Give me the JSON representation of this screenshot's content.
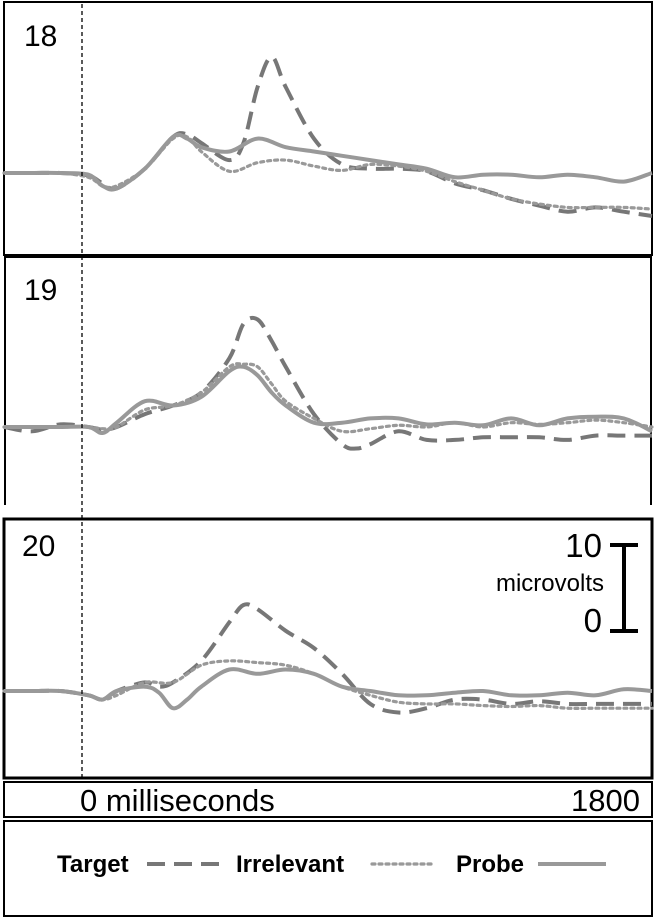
{
  "chart_data": {
    "type": "line",
    "x_unit": "milliseconds",
    "xlim": [
      -300,
      2000
    ],
    "x_ticks": [
      {
        "value": 0,
        "label": "0 milliseconds"
      },
      {
        "value": 1800,
        "label": "1800"
      }
    ],
    "scale_bar": {
      "top_label": "10",
      "bottom_label": "0",
      "unit_label": "microvolts",
      "microvolts": 10
    },
    "legend": {
      "placement": "bottom",
      "entries": [
        {
          "label": "Target",
          "style": "dashed"
        },
        {
          "label": "Irrelevant",
          "style": "dotted"
        },
        {
          "label": "Probe",
          "style": "solid"
        }
      ]
    },
    "colors": {
      "target": "#777777",
      "irrelevant": "#999999",
      "probe": "#999999"
    },
    "panels": [
      {
        "label": "18",
        "ylim": [
          -7,
          18
        ],
        "series": [
          {
            "name": "Target",
            "x": [
              -300,
              -200,
              -100,
              0,
              50,
              100,
              200,
              300,
              350,
              400,
              500,
              550,
              600,
              650,
              700,
              800,
              900,
              1000,
              1100,
              1200,
              1300,
              1400,
              1500,
              1600,
              1700,
              1800,
              1900,
              2000
            ],
            "y": [
              0,
              0,
              0,
              -0.3,
              -1.2,
              -1.8,
              0.5,
              4.2,
              4.5,
              3.5,
              1.5,
              3.5,
              10,
              13.5,
              10,
              4,
              1,
              0.5,
              0.5,
              0.2,
              -1.2,
              -2,
              -3,
              -3.8,
              -4.5,
              -4,
              -4.5,
              -5
            ]
          },
          {
            "name": "Irrelevant",
            "x": [
              -300,
              -200,
              -100,
              0,
              50,
              100,
              200,
              300,
              350,
              400,
              500,
              600,
              700,
              800,
              900,
              1000,
              1100,
              1200,
              1300,
              1400,
              1500,
              1600,
              1700,
              1800,
              1900,
              2000
            ],
            "y": [
              0,
              0,
              0,
              -0.5,
              -1.5,
              -1.5,
              0.5,
              4,
              4.2,
              2.5,
              0.2,
              1.2,
              1.5,
              0.8,
              0.3,
              1,
              0.8,
              0.2,
              -1,
              -2,
              -3,
              -3.6,
              -4,
              -4,
              -4,
              -4.2
            ]
          },
          {
            "name": "Probe",
            "x": [
              -300,
              -200,
              -100,
              0,
              50,
              100,
              200,
              300,
              350,
              400,
              500,
              600,
              700,
              800,
              900,
              1000,
              1100,
              1200,
              1300,
              1400,
              1500,
              1600,
              1700,
              1800,
              1900,
              2000
            ],
            "y": [
              0,
              0,
              0,
              -0.2,
              -1.5,
              -1.8,
              0.5,
              4.2,
              4,
              3,
              2.5,
              4,
              3,
              2.5,
              2,
              1.5,
              1,
              0.5,
              -0.5,
              -0.2,
              -0.2,
              -0.5,
              -0.2,
              -0.5,
              -1,
              0
            ]
          }
        ]
      },
      {
        "label": "19",
        "ylim": [
          -7,
          18
        ],
        "series": [
          {
            "name": "Target",
            "x": [
              -300,
              -200,
              -100,
              0,
              50,
              100,
              200,
              300,
              400,
              500,
              550,
              600,
              650,
              700,
              800,
              900,
              950,
              1000,
              1100,
              1200,
              1300,
              1400,
              1500,
              1600,
              1700,
              1800,
              1900,
              2000
            ],
            "y": [
              0,
              -0.5,
              0.3,
              0,
              -0.3,
              0,
              1.5,
              2.5,
              4,
              8,
              12,
              12.5,
              10,
              7,
              1.5,
              -2,
              -2.5,
              -2,
              -0.5,
              -1.5,
              -1.5,
              -1.2,
              -1.2,
              -1.2,
              -1.5,
              -1,
              -1,
              -1
            ]
          },
          {
            "name": "Irrelevant",
            "x": [
              -300,
              -200,
              -100,
              0,
              50,
              100,
              200,
              300,
              400,
              500,
              550,
              600,
              650,
              700,
              800,
              900,
              1000,
              1100,
              1200,
              1300,
              1400,
              1500,
              1600,
              1700,
              1800,
              1900,
              2000
            ],
            "y": [
              0,
              0,
              0,
              0,
              -0.2,
              0,
              2,
              2.5,
              4,
              7,
              7.3,
              7,
              5,
              3,
              1,
              -0.5,
              -0.2,
              0.2,
              0,
              0.5,
              0,
              0.5,
              0.3,
              0.5,
              0.8,
              0.5,
              0
            ]
          },
          {
            "name": "Probe",
            "x": [
              -300,
              -200,
              -100,
              0,
              50,
              100,
              200,
              300,
              400,
              500,
              550,
              600,
              650,
              700,
              800,
              900,
              1000,
              1100,
              1200,
              1300,
              1400,
              1500,
              1600,
              1700,
              1800,
              1900,
              2000
            ],
            "y": [
              0,
              0,
              0,
              0,
              -0.7,
              0.5,
              3,
              2.5,
              3.5,
              6.5,
              7,
              6,
              4,
              2.5,
              0.5,
              0.5,
              1,
              1,
              0.3,
              0.5,
              0.2,
              1,
              0.2,
              1,
              1.2,
              1,
              -0.5
            ]
          }
        ]
      },
      {
        "label": "20",
        "ylim": [
          -7,
          18
        ],
        "series": [
          {
            "name": "Target",
            "x": [
              -300,
              -200,
              -100,
              0,
              50,
              100,
              200,
              250,
              300,
              400,
              500,
              550,
              600,
              700,
              800,
              900,
              1000,
              1100,
              1200,
              1300,
              1400,
              1500,
              1600,
              1700,
              1800,
              1900,
              2000
            ],
            "y": [
              0,
              0,
              0,
              -0.5,
              -1,
              0,
              1,
              0.5,
              1,
              3.5,
              8,
              10,
              9.5,
              7,
              5,
              2,
              -1.5,
              -2.5,
              -2,
              -1,
              -1,
              -1.5,
              -1.2,
              -1.5,
              -1.5,
              -1.5,
              -1.5
            ]
          },
          {
            "name": "Irrelevant",
            "x": [
              -300,
              -200,
              -100,
              0,
              50,
              100,
              200,
              300,
              400,
              500,
              600,
              700,
              800,
              900,
              1000,
              1100,
              1200,
              1300,
              1400,
              1500,
              1600,
              1700,
              1800,
              1900,
              2000
            ],
            "y": [
              0,
              0,
              0,
              -0.5,
              -1,
              -0.5,
              1,
              1,
              3,
              3.5,
              3.3,
              3,
              2,
              0.5,
              -0.5,
              -1.3,
              -1.5,
              -1.5,
              -1.7,
              -1.8,
              -1.7,
              -2,
              -2,
              -2,
              -2
            ]
          },
          {
            "name": "Probe",
            "x": [
              -300,
              -200,
              -100,
              0,
              50,
              100,
              200,
              250,
              300,
              350,
              400,
              500,
              600,
              700,
              800,
              900,
              1000,
              1100,
              1200,
              1300,
              1400,
              1500,
              1600,
              1700,
              1800,
              1900,
              2000
            ],
            "y": [
              0,
              0,
              0,
              -0.5,
              -1,
              0,
              0.5,
              -0.2,
              -2,
              -1,
              0.5,
              2.5,
              2,
              2.5,
              2,
              0.5,
              0,
              -0.5,
              -0.5,
              -0.2,
              0,
              -0.5,
              -0.5,
              -0.2,
              -0.5,
              0.2,
              0
            ]
          }
        ]
      }
    ]
  }
}
